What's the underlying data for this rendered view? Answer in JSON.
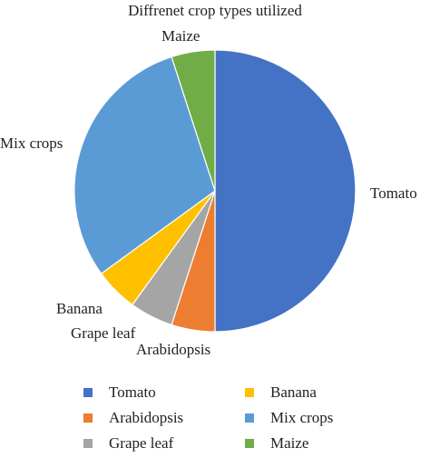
{
  "chart_data": {
    "type": "pie",
    "title": "Diffrenet crop types utilized",
    "slices": [
      {
        "label": "Tomato",
        "value": 50,
        "color": "#4472C4"
      },
      {
        "label": "Arabidopsis",
        "value": 5,
        "color": "#ED7D31"
      },
      {
        "label": "Grape leaf",
        "value": 5,
        "color": "#A5A5A5"
      },
      {
        "label": "Banana",
        "value": 5,
        "color": "#FFC000"
      },
      {
        "label": "Mix crops",
        "value": 30,
        "color": "#5B9BD5"
      },
      {
        "label": "Maize",
        "value": 5,
        "color": "#70AD47"
      }
    ],
    "legend": {
      "placement": "bottom",
      "items": [
        "Tomato",
        "Banana",
        "Arabidopsis",
        "Mix crops",
        "Grape leaf",
        "Maize"
      ]
    }
  }
}
